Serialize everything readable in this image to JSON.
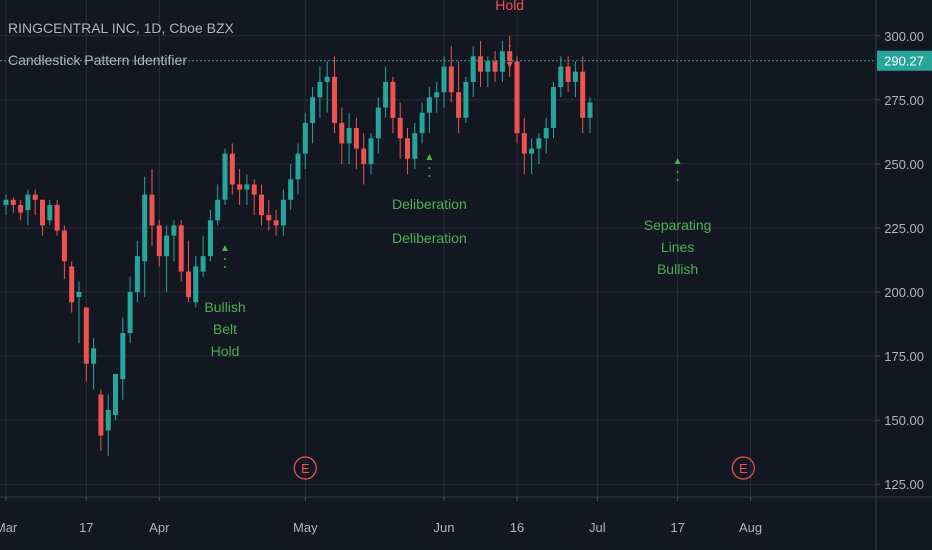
{
  "header": {
    "title": "RINGCENTRAL INC, 1D, Cboe BZX",
    "indicator": "Candlestick Pattern Identifier"
  },
  "colors": {
    "background": "#131722",
    "grid": "#2a2e39",
    "axis_text": "#b2b5be",
    "bull": "#26a69a",
    "bear": "#ef5350",
    "label_green": "#4caf50",
    "price_line": "#26a69a"
  },
  "chart_data": {
    "type": "candlestick",
    "x_ticks": [
      {
        "label": "Mar",
        "index": 0
      },
      {
        "label": "17",
        "index": 11
      },
      {
        "label": "Apr",
        "index": 21
      },
      {
        "label": "May",
        "index": 41
      },
      {
        "label": "Jun",
        "index": 60
      },
      {
        "label": "16",
        "index": 70
      },
      {
        "label": "Jul",
        "index": 81
      },
      {
        "label": "17",
        "index": 92
      },
      {
        "label": "Aug",
        "index": 102
      }
    ],
    "y_ticks": [
      300,
      275,
      250,
      225,
      200,
      175,
      150,
      125
    ],
    "ylim": [
      120,
      305
    ],
    "last_price": "290.27",
    "candles": [
      [
        234,
        238,
        230,
        236
      ],
      [
        236,
        237,
        231,
        234
      ],
      [
        234,
        236,
        228,
        231
      ],
      [
        232,
        240,
        226,
        238
      ],
      [
        238,
        240,
        230,
        236
      ],
      [
        236,
        236,
        222,
        226
      ],
      [
        228,
        236,
        226,
        234
      ],
      [
        234,
        236,
        222,
        224
      ],
      [
        224,
        226,
        205,
        212
      ],
      [
        210,
        212,
        192,
        196
      ],
      [
        198,
        204,
        180,
        200
      ],
      [
        194,
        194,
        165,
        172
      ],
      [
        172,
        182,
        162,
        178
      ],
      [
        160,
        162,
        138,
        144
      ],
      [
        146,
        160,
        136,
        154
      ],
      [
        152,
        168,
        150,
        168
      ],
      [
        166,
        190,
        158,
        184
      ],
      [
        184,
        206,
        180,
        200
      ],
      [
        200,
        220,
        196,
        214
      ],
      [
        212,
        245,
        198,
        238
      ],
      [
        238,
        248,
        218,
        226
      ],
      [
        226,
        228,
        210,
        214
      ],
      [
        214,
        226,
        200,
        222
      ],
      [
        222,
        228,
        212,
        226
      ],
      [
        226,
        228,
        204,
        208
      ],
      [
        208,
        220,
        196,
        198
      ],
      [
        196,
        214,
        194,
        210
      ],
      [
        208,
        222,
        206,
        214
      ],
      [
        214,
        232,
        212,
        228
      ],
      [
        228,
        242,
        226,
        236
      ],
      [
        236,
        256,
        234,
        254
      ],
      [
        254,
        258,
        238,
        242
      ],
      [
        242,
        248,
        234,
        240
      ],
      [
        240,
        246,
        234,
        242
      ],
      [
        242,
        244,
        230,
        238
      ],
      [
        238,
        242,
        226,
        230
      ],
      [
        230,
        236,
        224,
        228
      ],
      [
        228,
        232,
        222,
        226
      ],
      [
        226,
        240,
        222,
        236
      ],
      [
        236,
        250,
        232,
        244
      ],
      [
        244,
        258,
        238,
        254
      ],
      [
        254,
        270,
        248,
        266
      ],
      [
        266,
        280,
        258,
        276
      ],
      [
        276,
        288,
        268,
        282
      ],
      [
        282,
        290,
        270,
        284
      ],
      [
        284,
        292,
        262,
        266
      ],
      [
        266,
        272,
        250,
        258
      ],
      [
        258,
        270,
        250,
        264
      ],
      [
        264,
        268,
        248,
        256
      ],
      [
        256,
        262,
        242,
        250
      ],
      [
        250,
        262,
        246,
        260
      ],
      [
        260,
        276,
        254,
        272
      ],
      [
        272,
        288,
        268,
        282
      ],
      [
        282,
        284,
        262,
        268
      ],
      [
        268,
        274,
        252,
        260
      ],
      [
        260,
        264,
        246,
        252
      ],
      [
        252,
        266,
        248,
        262
      ],
      [
        262,
        274,
        258,
        270
      ],
      [
        270,
        280,
        262,
        276
      ],
      [
        276,
        282,
        270,
        278
      ],
      [
        278,
        292,
        272,
        288
      ],
      [
        288,
        296,
        274,
        278
      ],
      [
        278,
        290,
        262,
        268
      ],
      [
        268,
        284,
        266,
        282
      ],
      [
        282,
        296,
        276,
        292
      ],
      [
        292,
        298,
        280,
        286
      ],
      [
        286,
        292,
        280,
        290
      ],
      [
        290,
        294,
        282,
        286
      ],
      [
        286,
        298,
        282,
        294
      ],
      [
        294,
        300,
        284,
        290
      ],
      [
        290,
        292,
        258,
        262
      ],
      [
        262,
        268,
        246,
        254
      ],
      [
        254,
        260,
        246,
        256
      ],
      [
        256,
        262,
        250,
        260
      ],
      [
        260,
        268,
        254,
        264
      ],
      [
        264,
        282,
        260,
        280
      ],
      [
        280,
        292,
        276,
        288
      ],
      [
        288,
        292,
        278,
        282
      ],
      [
        282,
        290,
        276,
        286
      ],
      [
        286,
        292,
        262,
        268
      ],
      [
        268,
        276,
        262,
        274
      ]
    ],
    "annotations": [
      {
        "text": [
          "Bullish",
          "Belt",
          "Hold"
        ],
        "color": "label_green",
        "index": 30
      },
      {
        "text": [
          "Deliberation"
        ],
        "color": "label_green",
        "index": 58
      },
      {
        "text": [
          "Deliberation"
        ],
        "color": "label_green",
        "index": 58
      },
      {
        "text": [
          "Hold"
        ],
        "color": "bear",
        "index": 69
      },
      {
        "text": [
          "Separating",
          "Lines",
          "Bullish"
        ],
        "color": "label_green",
        "index": 92
      }
    ],
    "earnings_markers": [
      {
        "text": "E",
        "index": 41
      },
      {
        "text": "E",
        "index": 101
      }
    ]
  }
}
